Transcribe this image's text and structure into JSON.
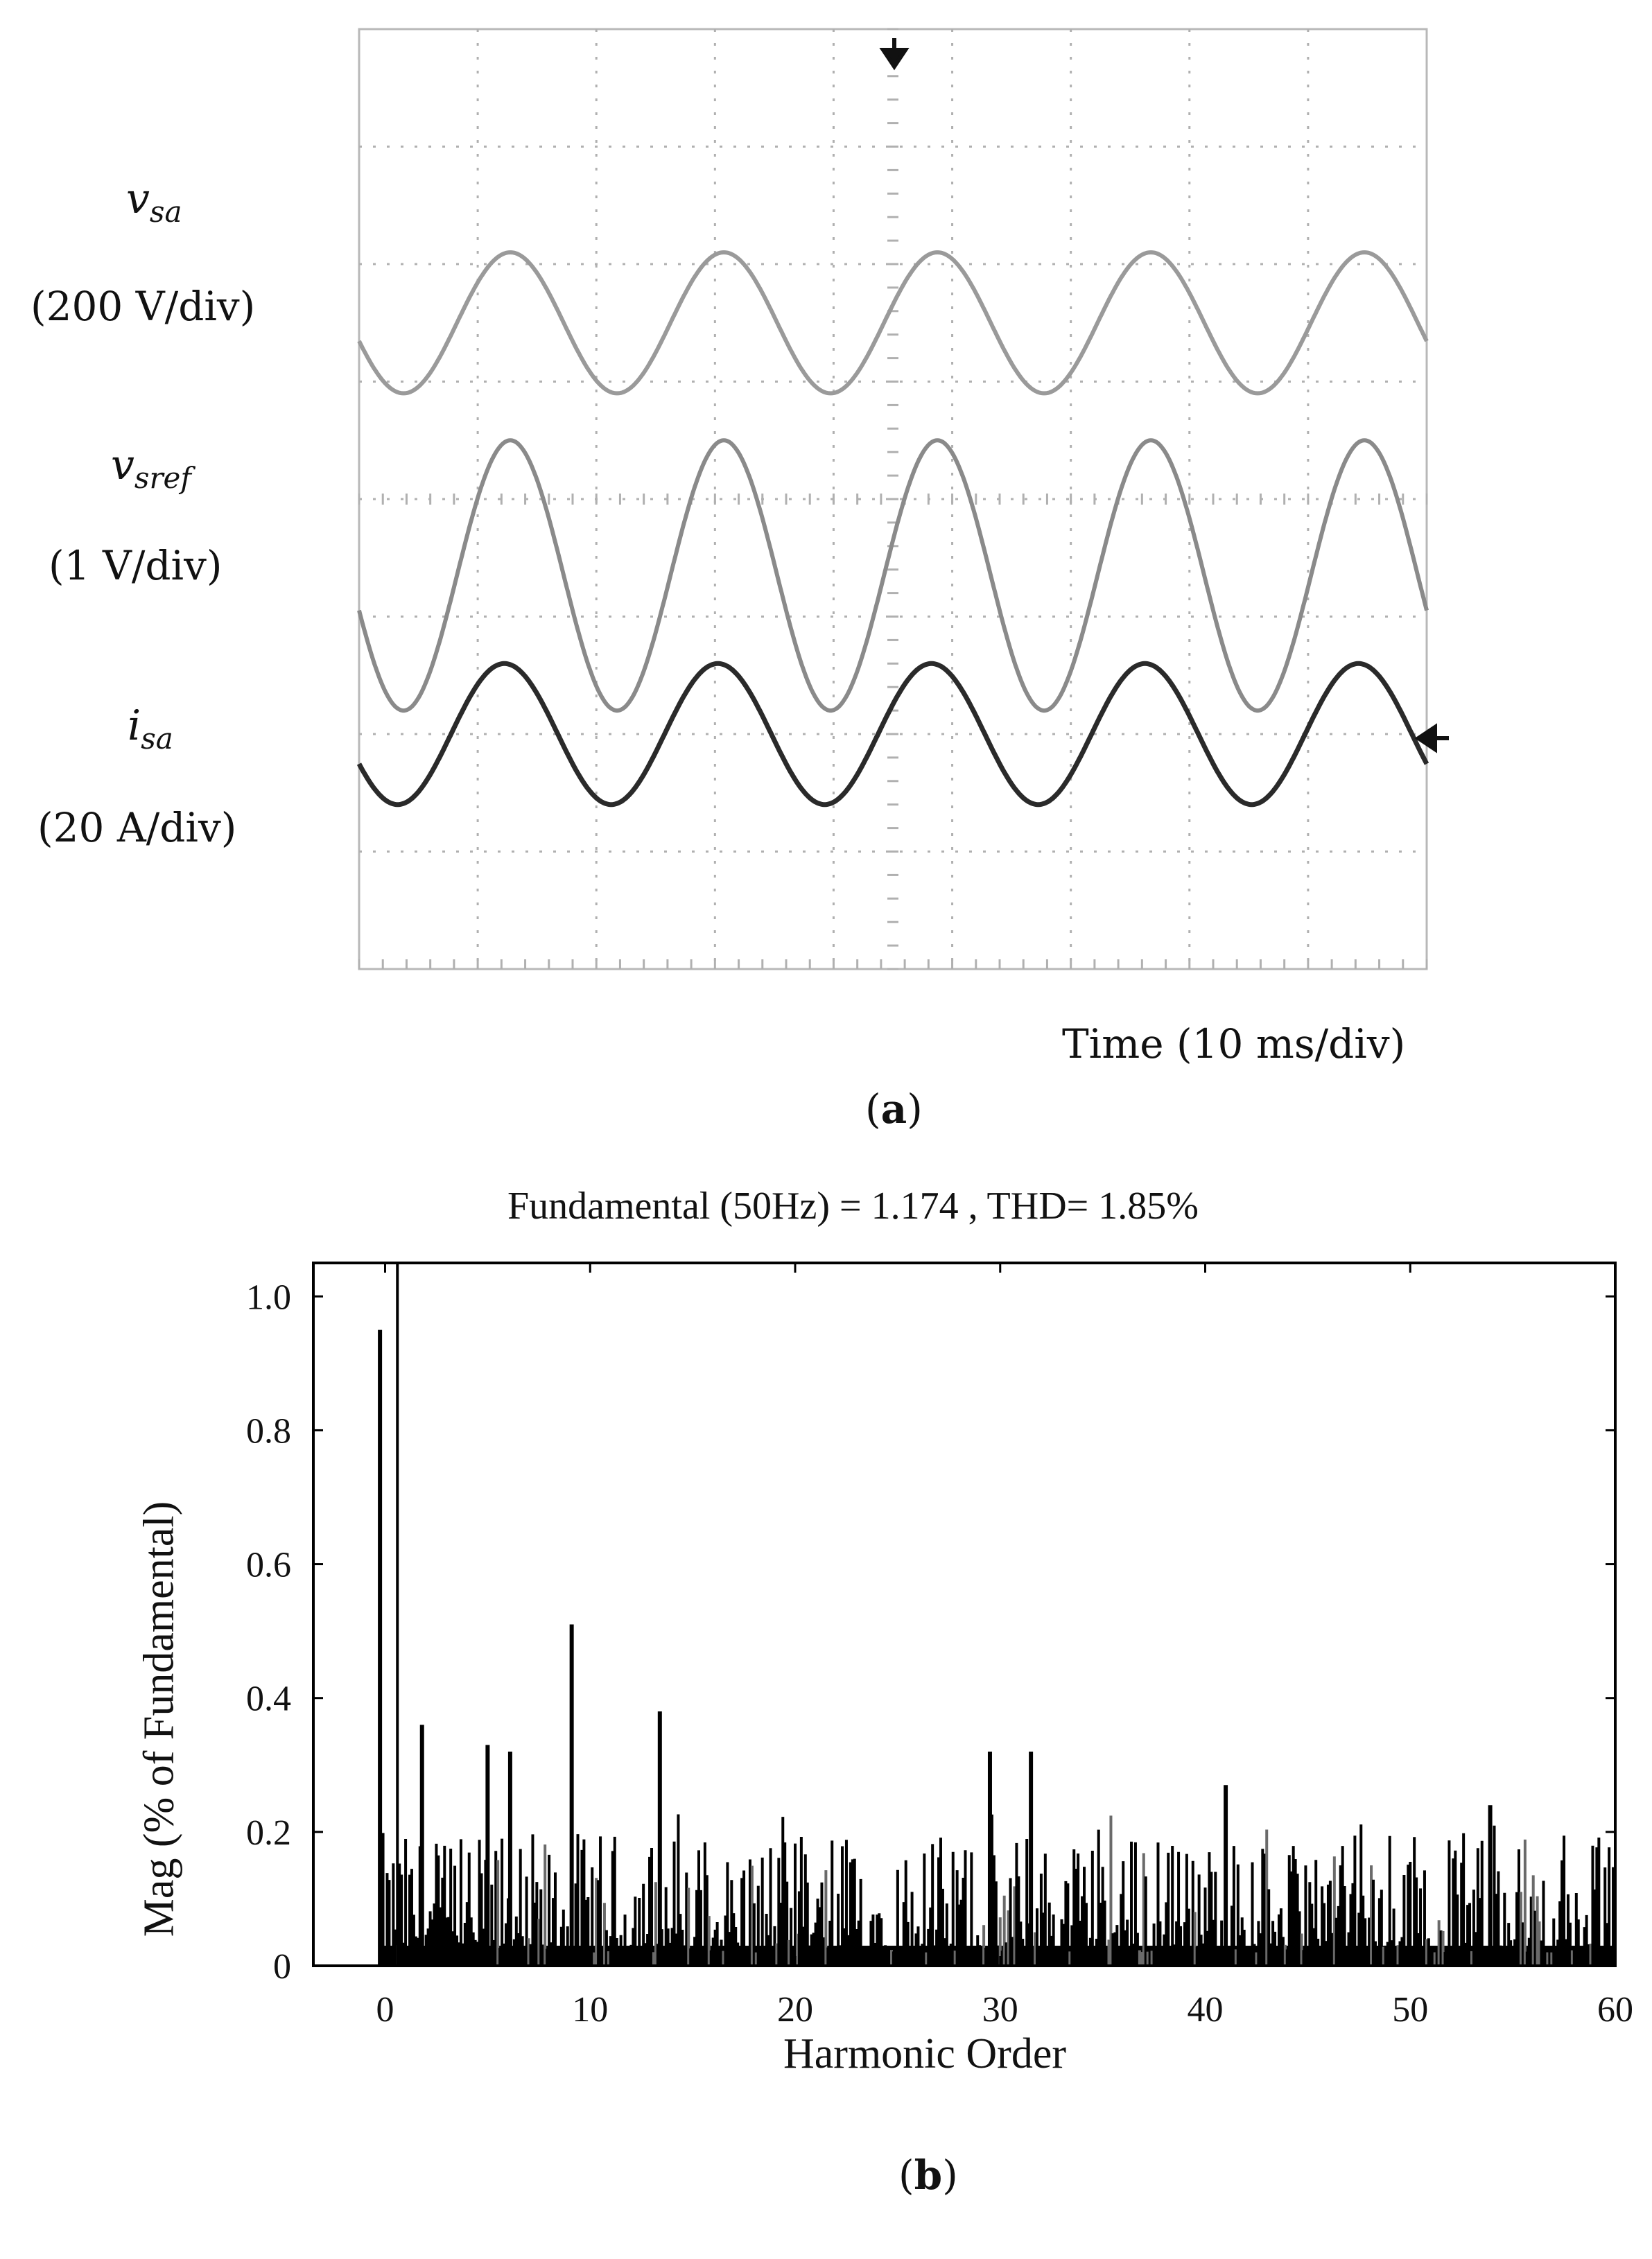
{
  "panel_a": {
    "caption_letter": "a",
    "channels": [
      {
        "symbol": "v",
        "subscript": "sa",
        "scale": "(200 V/div)",
        "color": "#9a9a9a"
      },
      {
        "symbol": "v",
        "subscript": "sref",
        "scale": "(1 V/div)",
        "color": "#8a8a8a"
      },
      {
        "symbol": "i",
        "subscript": "sa",
        "scale": "(20 A/div)",
        "color": "#2a2a2a"
      }
    ],
    "time_label": "Time (10 ms/div)"
  },
  "panel_b": {
    "caption_letter": "b"
  },
  "chart_data": [
    {
      "type": "line",
      "title": "",
      "xlabel": "Time (10 ms/div)",
      "ylabel": "",
      "grid": true,
      "divisions": {
        "x": 9,
        "y": 8
      },
      "period_div": 1.8,
      "series": [
        {
          "name": "v_sa (200 V/div)",
          "center_div": 2.5,
          "amplitude_div": 0.6,
          "phase_deg": 195
        },
        {
          "name": "v_sref (1 V/div)",
          "center_div": 4.65,
          "amplitude_div": 1.15,
          "phase_deg": 195
        },
        {
          "name": "i_sa (20 A/div)",
          "center_div": 6.0,
          "amplitude_div": 0.6,
          "phase_deg": 205
        }
      ]
    },
    {
      "type": "bar",
      "title": "Fundamental (50Hz) = 1.174 , THD= 1.85%",
      "xlabel": "Harmonic Order",
      "ylabel": "Mag (% of Fundamental)",
      "xlim": [
        -3.5,
        60
      ],
      "ylim": [
        0,
        1.05
      ],
      "xticks": [
        "0",
        "10",
        "20",
        "30",
        "40",
        "50",
        "60"
      ],
      "yticks": [
        "0",
        "0.2",
        "0.4",
        "0.6",
        "0.8",
        "1.0"
      ],
      "fundamental_marker_at": 0.6,
      "labeled_peaks": [
        {
          "x": -0.25,
          "y": 0.95
        },
        {
          "x": 1.8,
          "y": 0.36
        },
        {
          "x": 5.0,
          "y": 0.33
        },
        {
          "x": 6.1,
          "y": 0.32
        },
        {
          "x": 9.1,
          "y": 0.51
        },
        {
          "x": 13.4,
          "y": 0.38
        },
        {
          "x": 29.5,
          "y": 0.32
        },
        {
          "x": 31.5,
          "y": 0.32
        },
        {
          "x": 41.0,
          "y": 0.27
        },
        {
          "x": 53.9,
          "y": 0.24
        }
      ],
      "noise_floor_range": [
        0.02,
        0.2
      ]
    }
  ]
}
